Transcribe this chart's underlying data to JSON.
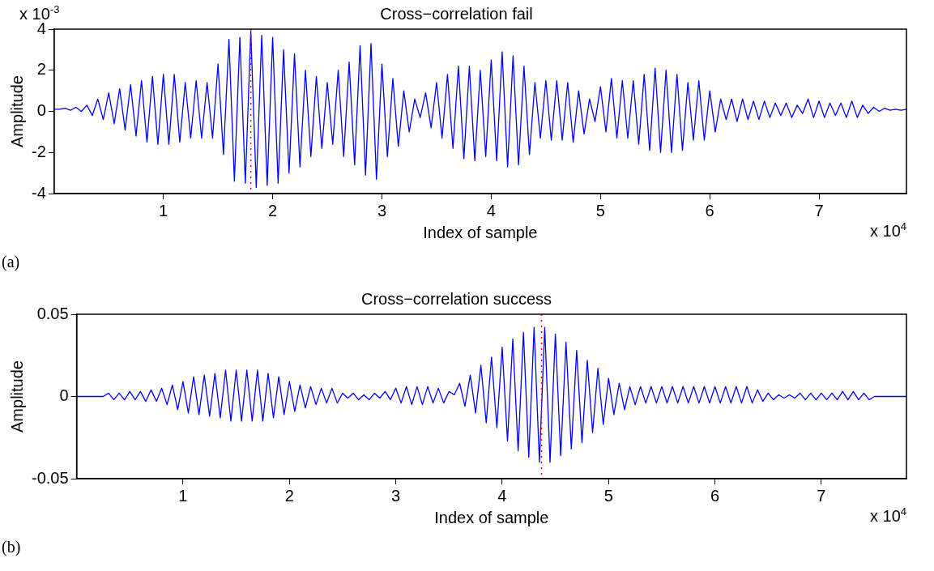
{
  "chart_data": [
    {
      "type": "line",
      "title": "Cross−correlation fail",
      "xlabel": "Index of sample",
      "ylabel": "Amplitude",
      "xlim": [
        0,
        7.8
      ],
      "xticks": [
        1,
        2,
        3,
        4,
        5,
        6,
        7
      ],
      "ylim": [
        -4,
        4
      ],
      "yticks": [
        -4,
        -2,
        0,
        2,
        4
      ],
      "x": [
        0,
        0.05,
        0.1,
        0.15,
        0.2,
        0.25,
        0.3,
        0.35,
        0.4,
        0.45,
        0.5,
        0.55,
        0.6,
        0.65,
        0.7,
        0.75,
        0.8,
        0.85,
        0.9,
        0.95,
        1,
        1.05,
        1.1,
        1.15,
        1.2,
        1.25,
        1.3,
        1.35,
        1.4,
        1.45,
        1.5,
        1.55,
        1.6,
        1.65,
        1.7,
        1.75,
        1.8,
        1.85,
        1.9,
        1.95,
        2,
        2.05,
        2.1,
        2.15,
        2.2,
        2.25,
        2.3,
        2.35,
        2.4,
        2.45,
        2.5,
        2.55,
        2.6,
        2.65,
        2.7,
        2.75,
        2.8,
        2.85,
        2.9,
        2.95,
        3,
        3.05,
        3.1,
        3.15,
        3.2,
        3.25,
        3.3,
        3.35,
        3.4,
        3.45,
        3.5,
        3.55,
        3.6,
        3.65,
        3.7,
        3.75,
        3.8,
        3.85,
        3.9,
        3.95,
        4,
        4.05,
        4.1,
        4.15,
        4.2,
        4.25,
        4.3,
        4.35,
        4.4,
        4.45,
        4.5,
        4.55,
        4.6,
        4.65,
        4.7,
        4.75,
        4.8,
        4.85,
        4.9,
        4.95,
        5,
        5.05,
        5.1,
        5.15,
        5.2,
        5.25,
        5.3,
        5.35,
        5.4,
        5.45,
        5.5,
        5.55,
        5.6,
        5.65,
        5.7,
        5.75,
        5.8,
        5.85,
        5.9,
        5.95,
        6,
        6.05,
        6.1,
        6.15,
        6.2,
        6.25,
        6.3,
        6.35,
        6.4,
        6.45,
        6.5,
        6.55,
        6.6,
        6.65,
        6.7,
        6.75,
        6.8,
        6.85,
        6.9,
        6.95,
        7,
        7.05,
        7.1,
        7.15,
        7.2,
        7.25,
        7.3,
        7.35,
        7.4,
        7.45,
        7.5,
        7.55,
        7.6,
        7.65,
        7.7,
        7.75,
        7.8
      ],
      "series": [
        {
          "color": "#0000ff",
          "values": [
            0.1,
            0.1,
            0.15,
            0.05,
            0.2,
            0,
            0.3,
            -0.2,
            0.6,
            -0.4,
            0.9,
            -0.6,
            1.1,
            -0.9,
            1.3,
            -1.2,
            1.5,
            -1.5,
            1.7,
            -1.6,
            1.8,
            -1.6,
            1.8,
            -1.5,
            1.4,
            -1.3,
            1.5,
            -1.3,
            1.4,
            -1.3,
            2.3,
            -2.1,
            3.5,
            -3.4,
            3.6,
            -3.5,
            3.9,
            -3.7,
            3.7,
            -3.6,
            3.6,
            -3.5,
            3,
            -3,
            2.8,
            -2.7,
            2,
            -2.2,
            1.7,
            -1.8,
            1.4,
            -1.6,
            2,
            -2.2,
            2.4,
            -2.6,
            3.2,
            -3.1,
            3.3,
            -3.3,
            2.3,
            -2.2,
            1.6,
            -1.7,
            1,
            -1,
            0.6,
            -0.3,
            0.9,
            -0.8,
            1.4,
            -1.3,
            1.8,
            -1.8,
            2.2,
            -2.3,
            2.2,
            -2.4,
            2,
            -2.2,
            2.5,
            -2.4,
            2.9,
            -2.7,
            2.7,
            -2.6,
            2.2,
            -2.1,
            1.4,
            -1.3,
            1.5,
            -1.4,
            1.5,
            -1.4,
            1.4,
            -1.5,
            1,
            -1.1,
            0.6,
            -0.5,
            1.2,
            -1,
            1.6,
            -1.3,
            1.5,
            -1.3,
            1.5,
            -1.6,
            1.8,
            -1.9,
            2.1,
            -2,
            2,
            -2,
            1.8,
            -1.9,
            1.4,
            -1.4,
            1.5,
            -1.4,
            1,
            -1,
            0.6,
            -0.4,
            0.6,
            -0.5,
            0.6,
            -0.4,
            0.5,
            -0.4,
            0.5,
            -0.3,
            0.4,
            -0.2,
            0.4,
            -0.3,
            0.3,
            -0.1,
            0.6,
            -0.3,
            0.5,
            -0.3,
            0.4,
            -0.2,
            0.4,
            -0.3,
            0.5,
            -0.3,
            0.3,
            -0.1,
            0.2,
            0,
            0.15,
            0.05,
            0.1,
            0.05,
            0.1
          ]
        }
      ],
      "ref_lines": [
        {
          "axis": "x",
          "value": 1.8,
          "color": "#ff0000",
          "line_style": "dotted"
        }
      ],
      "annotations": [
        "x 10$^{4}$",
        "(a)",
        "x 10$^{-3}$"
      ]
    },
    {
      "type": "line",
      "title": "Cross−correlation success",
      "xlabel": "Index of sample",
      "ylabel": "Amplitude",
      "xlim": [
        0,
        7.8
      ],
      "xticks": [
        1,
        2,
        3,
        4,
        5,
        6,
        7
      ],
      "ylim": [
        -0.05,
        0.05
      ],
      "yticks": [
        -0.05,
        0,
        0.05
      ],
      "x": [
        0,
        0.05,
        0.1,
        0.15,
        0.2,
        0.25,
        0.3,
        0.35,
        0.4,
        0.45,
        0.5,
        0.55,
        0.6,
        0.65,
        0.7,
        0.75,
        0.8,
        0.85,
        0.9,
        0.95,
        1,
        1.05,
        1.1,
        1.15,
        1.2,
        1.25,
        1.3,
        1.35,
        1.4,
        1.45,
        1.5,
        1.55,
        1.6,
        1.65,
        1.7,
        1.75,
        1.8,
        1.85,
        1.9,
        1.95,
        2,
        2.05,
        2.1,
        2.15,
        2.2,
        2.25,
        2.3,
        2.35,
        2.4,
        2.45,
        2.5,
        2.55,
        2.6,
        2.65,
        2.7,
        2.75,
        2.8,
        2.85,
        2.9,
        2.95,
        3,
        3.05,
        3.1,
        3.15,
        3.2,
        3.25,
        3.3,
        3.35,
        3.4,
        3.45,
        3.5,
        3.55,
        3.6,
        3.65,
        3.7,
        3.75,
        3.8,
        3.85,
        3.9,
        3.95,
        4,
        4.05,
        4.1,
        4.15,
        4.2,
        4.25,
        4.3,
        4.35,
        4.4,
        4.45,
        4.5,
        4.55,
        4.6,
        4.65,
        4.7,
        4.75,
        4.8,
        4.85,
        4.9,
        4.95,
        5,
        5.05,
        5.1,
        5.15,
        5.2,
        5.25,
        5.3,
        5.35,
        5.4,
        5.45,
        5.5,
        5.55,
        5.6,
        5.65,
        5.7,
        5.75,
        5.8,
        5.85,
        5.9,
        5.95,
        6,
        6.05,
        6.1,
        6.15,
        6.2,
        6.25,
        6.3,
        6.35,
        6.4,
        6.45,
        6.5,
        6.55,
        6.6,
        6.65,
        6.7,
        6.75,
        6.8,
        6.85,
        6.9,
        6.95,
        7,
        7.05,
        7.1,
        7.15,
        7.2,
        7.25,
        7.3,
        7.35,
        7.4,
        7.45,
        7.5,
        7.55,
        7.6,
        7.65,
        7.7,
        7.75,
        7.8
      ],
      "series": [
        {
          "color": "#0000ff",
          "values": [
            0,
            0,
            0,
            0,
            0,
            0,
            0.002,
            -0.002,
            0.002,
            -0.002,
            0.003,
            -0.002,
            0.003,
            -0.003,
            0.004,
            -0.003,
            0.005,
            -0.005,
            0.007,
            -0.008,
            0.009,
            -0.01,
            0.012,
            -0.011,
            0.013,
            -0.012,
            0.014,
            -0.013,
            0.016,
            -0.015,
            0.016,
            -0.015,
            0.016,
            -0.015,
            0.016,
            -0.015,
            0.014,
            -0.013,
            0.012,
            -0.011,
            0.009,
            -0.009,
            0.007,
            -0.007,
            0.006,
            -0.005,
            0.005,
            -0.004,
            0.005,
            -0.004,
            0.002,
            -0.001,
            0.002,
            -0.002,
            0.001,
            -0.002,
            0.002,
            -0.001,
            0.003,
            -0.002,
            0.005,
            -0.004,
            0.006,
            -0.005,
            0.006,
            -0.005,
            0.006,
            -0.004,
            0.005,
            -0.004,
            0.003,
            0.001,
            0.008,
            -0.006,
            0.013,
            -0.01,
            0.019,
            -0.016,
            0.024,
            -0.019,
            0.03,
            -0.027,
            0.035,
            -0.033,
            0.039,
            -0.037,
            0.042,
            -0.04,
            0.042,
            -0.04,
            0.038,
            -0.036,
            0.033,
            -0.032,
            0.028,
            -0.028,
            0.022,
            -0.022,
            0.017,
            -0.017,
            0.011,
            -0.011,
            0.008,
            -0.008,
            0.006,
            -0.005,
            0.006,
            -0.004,
            0.006,
            -0.004,
            0.006,
            -0.004,
            0.006,
            -0.004,
            0.006,
            -0.004,
            0.006,
            -0.004,
            0.006,
            -0.004,
            0.006,
            -0.004,
            0.006,
            -0.004,
            0.006,
            -0.004,
            0.006,
            -0.004,
            0.004,
            -0.003,
            0.002,
            -0.002,
            0.001,
            -0.001,
            0.001,
            -0.001,
            0.002,
            -0.002,
            0.002,
            -0.002,
            0.002,
            -0.002,
            0.002,
            -0.002,
            0.003,
            -0.002,
            0.003,
            -0.002,
            0.002,
            -0.002,
            0,
            0,
            0,
            0,
            0,
            0,
            0
          ]
        }
      ],
      "ref_lines": [
        {
          "axis": "x",
          "value": 4.37,
          "color": "#ff0000",
          "line_style": "dotted"
        }
      ],
      "annotations": [
        "x 10$^{4}$",
        "(b)"
      ]
    }
  ]
}
